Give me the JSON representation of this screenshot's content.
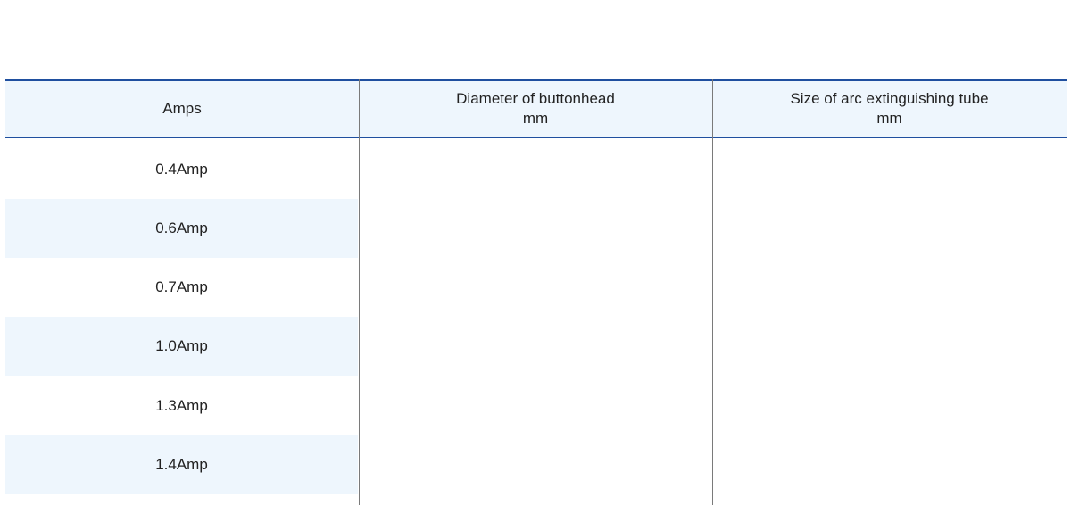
{
  "table": {
    "headers": [
      {
        "line1": "Amps",
        "line2": ""
      },
      {
        "line1": "Diameter of buttonhead",
        "line2": "mm"
      },
      {
        "line1": "Size of arc extinguishing tube",
        "line2": "mm"
      }
    ],
    "rows": [
      "0.4Amp",
      "0.6Amp",
      "0.7Amp",
      "1.0Amp",
      "1.3Amp",
      "1.4Amp"
    ]
  },
  "colors": {
    "accent": "#1f4f9f",
    "stripe": "#eef6fd"
  }
}
